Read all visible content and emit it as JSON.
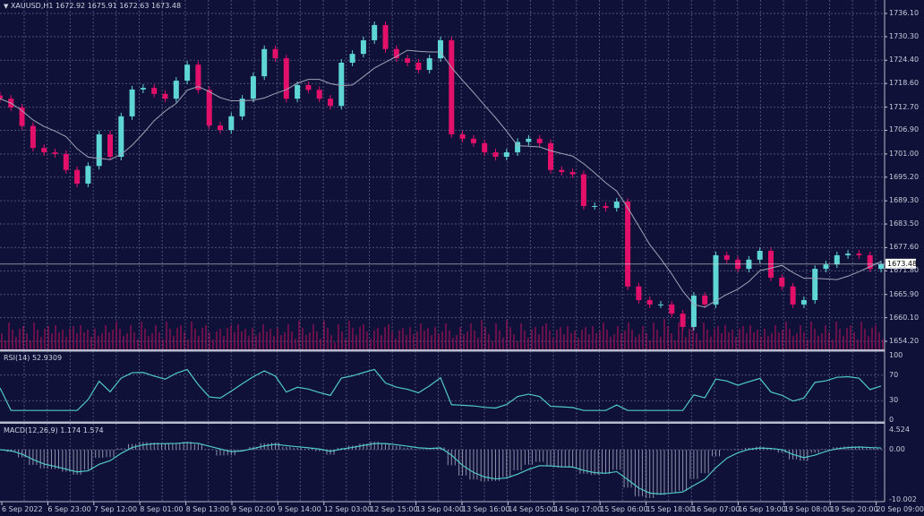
{
  "header": {
    "symbol": "XAUUSD,H1",
    "open": "1672.92",
    "high": "1675.91",
    "low": "1672.63",
    "close": "1673.48",
    "menu_icon": "triangle-down-icon"
  },
  "colors": {
    "background": "#0f1139",
    "grid": "#4b5078",
    "bull": "#5fd6d6",
    "bear": "#e3106a",
    "ma": "#a0a3b4",
    "rsi": "#4fc9c9",
    "macd_signal": "#4fc9c9",
    "macd_hist": "#8e91a6",
    "volume": "#c0105a"
  },
  "rsi": {
    "label": "RSI(14) 52.9309",
    "levels": [
      "100",
      "70",
      "30",
      "0"
    ]
  },
  "macd": {
    "label": "MACD(12,26,9) 1.174 1.574",
    "levels": [
      "4.524",
      "0.00",
      "-10.002"
    ]
  },
  "chart_data": {
    "type": "candlestick",
    "title": "XAUUSD,H1",
    "price_ticks": [
      "1736.10",
      "1730.30",
      "1724.40",
      "1718.60",
      "1712.70",
      "1706.90",
      "1701.00",
      "1695.20",
      "1689.30",
      "1683.50",
      "1677.60",
      "1671.80",
      "1665.90",
      "1660.10",
      "1654.20"
    ],
    "ylim": [
      1654.2,
      1736.1
    ],
    "current_price": "1673.48",
    "x_ticks": [
      "6 Sep 2022",
      "6 Sep 23:00",
      "7 Sep 12:00",
      "8 Sep 01:00",
      "8 Sep 13:00",
      "9 Sep 02:00",
      "9 Sep 14:00",
      "12 Sep 03:00",
      "12 Sep 15:00",
      "13 Sep 04:00",
      "13 Sep 16:00",
      "14 Sep 05:00",
      "14 Sep 17:00",
      "15 Sep 06:00",
      "15 Sep 18:00",
      "16 Sep 07:00",
      "16 Sep 19:00",
      "19 Sep 08:00",
      "19 Sep 20:00",
      "20 Sep 09:00"
    ],
    "grid": true,
    "closes": [
      1714.8,
      1712.6,
      1708,
      1702.5,
      1701.4,
      1701,
      1697,
      1693.6,
      1698,
      1705.9,
      1700.3,
      1710.4,
      1717.1,
      1717.5,
      1716,
      1714.8,
      1719.3,
      1723.3,
      1717,
      1708.1,
      1707,
      1710.4,
      1714.8,
      1720.4,
      1727.2,
      1724.9,
      1714.8,
      1718.2,
      1717,
      1714.8,
      1713,
      1723.8,
      1726,
      1729.4,
      1733.2,
      1727.2,
      1724.9,
      1723.8,
      1722,
      1724.9,
      1729.4,
      1705.9,
      1704.8,
      1703.7,
      1701.4,
      1700.3,
      1701.4,
      1704,
      1704.8,
      1703.7,
      1697,
      1696.5,
      1695.9,
      1688,
      1688,
      1687.5,
      1689.1,
      1667.9,
      1664.5,
      1663.4,
      1663.4,
      1661.1,
      1657.8,
      1665.6,
      1663.4,
      1675.7,
      1674.6,
      1672.3,
      1674.6,
      1676.8,
      1670.1,
      1667.9,
      1663.4,
      1664.5,
      1672.3,
      1673.4,
      1675.7,
      1676.1,
      1675.7,
      1672.3,
      1673.48
    ]
  }
}
